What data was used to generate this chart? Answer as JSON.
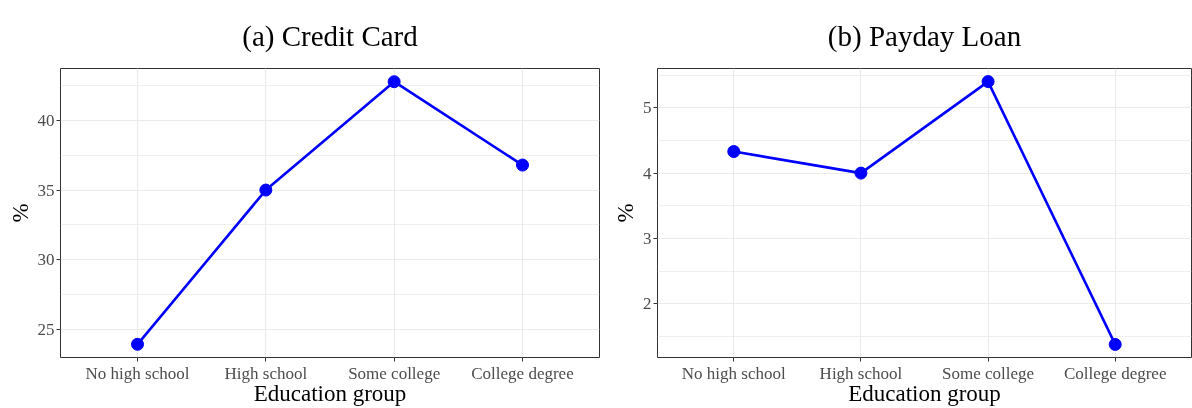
{
  "chart_data": [
    {
      "type": "line",
      "title": "(a) Credit Card",
      "xlabel": "Education group",
      "ylabel": "%",
      "categories": [
        "No high school",
        "High school",
        "Some college",
        "College degree"
      ],
      "values": [
        23.9,
        35.0,
        42.8,
        36.8
      ],
      "color": "#0000ff",
      "ylim": [
        22.95,
        43.75
      ],
      "yticks": [
        25,
        30,
        35,
        40
      ],
      "grid": true,
      "marker": "circle",
      "line_style": "solid"
    },
    {
      "type": "line",
      "title": "(b) Payday Loan",
      "xlabel": "Education group",
      "ylabel": "%",
      "categories": [
        "No high school",
        "High school",
        "Some college",
        "College degree"
      ],
      "values": [
        4.33,
        4.0,
        5.4,
        1.38
      ],
      "color": "#0000ff",
      "ylim": [
        1.18,
        5.6
      ],
      "yticks": [
        2,
        3,
        4,
        5
      ],
      "grid": true,
      "marker": "circle",
      "line_style": "solid"
    }
  ]
}
